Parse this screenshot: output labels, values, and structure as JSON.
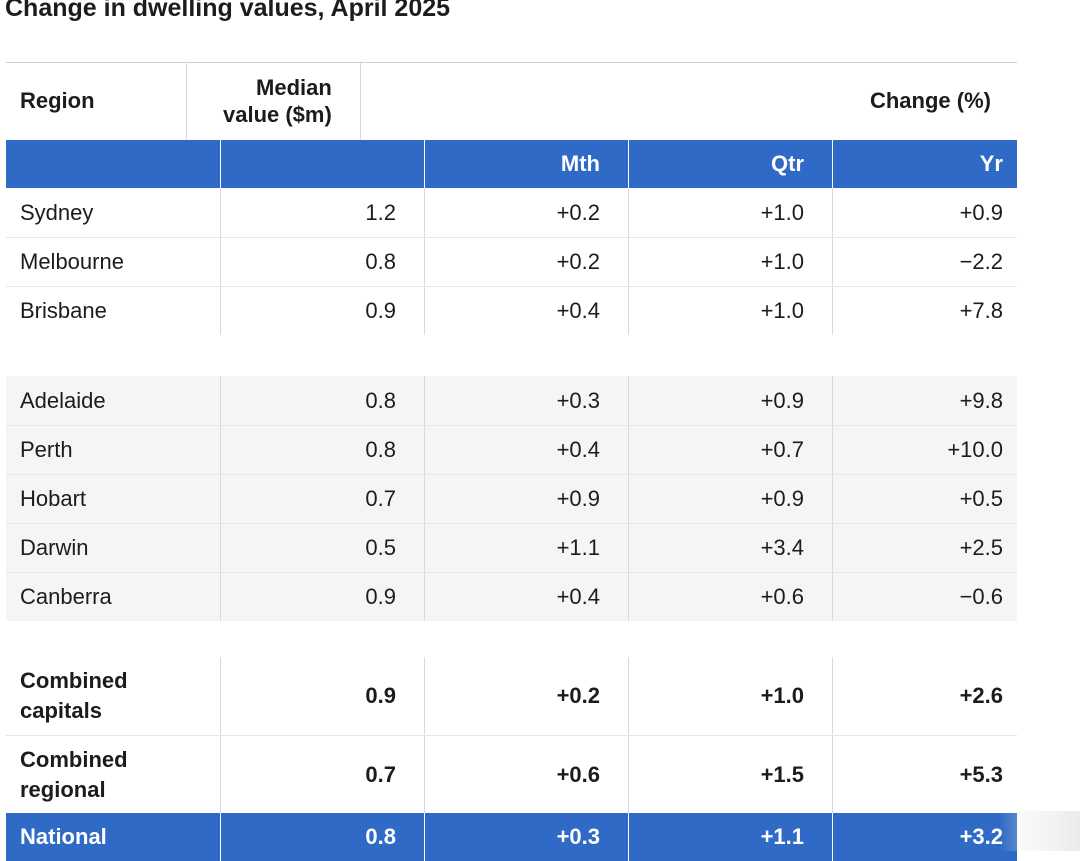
{
  "chart_data": {
    "type": "table",
    "title": "Change in dwelling values, April 2025",
    "columns": {
      "region": "Region",
      "median": "Median value ($m)",
      "change_group": "Change (%)",
      "mth": "Mth",
      "qtr": "Qtr",
      "yr": "Yr"
    },
    "groups": [
      {
        "rows": [
          {
            "region": "Sydney",
            "median": "1.2",
            "mth": "+0.2",
            "qtr": "+1.0",
            "yr": "+0.9"
          },
          {
            "region": "Melbourne",
            "median": "0.8",
            "mth": "+0.2",
            "qtr": "+1.0",
            "yr": "−2.2"
          },
          {
            "region": "Brisbane",
            "median": "0.9",
            "mth": "+0.4",
            "qtr": "+1.0",
            "yr": "+7.8"
          }
        ]
      },
      {
        "rows": [
          {
            "region": "Adelaide",
            "median": "0.8",
            "mth": "+0.3",
            "qtr": "+0.9",
            "yr": "+9.8"
          },
          {
            "region": "Perth",
            "median": "0.8",
            "mth": "+0.4",
            "qtr": "+0.7",
            "yr": "+10.0"
          },
          {
            "region": "Hobart",
            "median": "0.7",
            "mth": "+0.9",
            "qtr": "+0.9",
            "yr": "+0.5"
          },
          {
            "region": "Darwin",
            "median": "0.5",
            "mth": "+1.1",
            "qtr": "+3.4",
            "yr": "+2.5"
          },
          {
            "region": "Canberra",
            "median": "0.9",
            "mth": "+0.4",
            "qtr": "+0.6",
            "yr": "−0.6"
          }
        ]
      },
      {
        "rows": [
          {
            "region": "Combined capitals",
            "median": "0.9",
            "mth": "+0.2",
            "qtr": "+1.0",
            "yr": "+2.6"
          },
          {
            "region": "Combined regional",
            "median": "0.7",
            "mth": "+0.6",
            "qtr": "+1.5",
            "yr": "+5.3"
          }
        ]
      }
    ],
    "national": {
      "region": "National",
      "median": "0.8",
      "mth": "+0.3",
      "qtr": "+1.1",
      "yr": "+3.2"
    },
    "colors": {
      "header_band": "#2f6bc6",
      "text": "#1c1c1c",
      "shaded_row": "#f5f5f5"
    }
  }
}
